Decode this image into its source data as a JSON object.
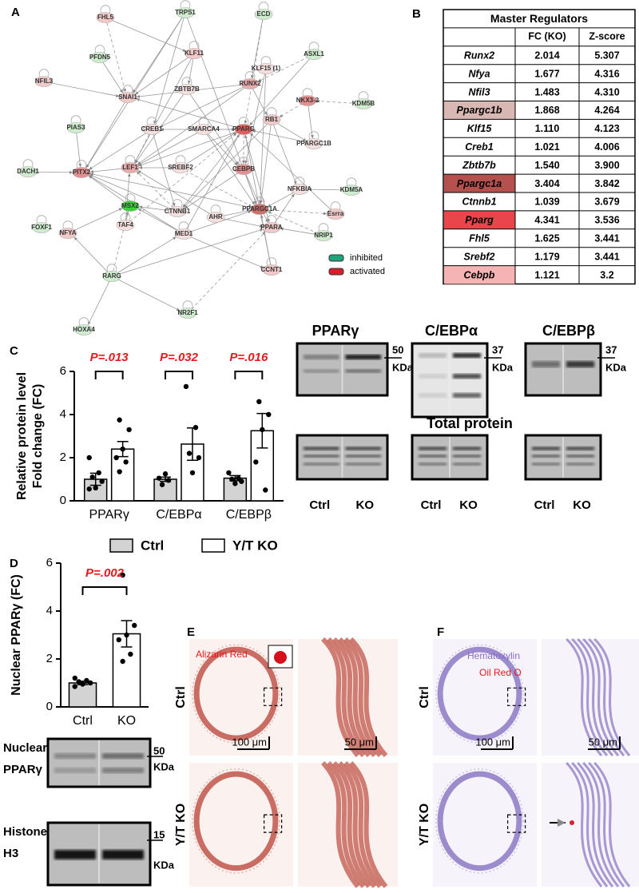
{
  "panels": {
    "a": "A",
    "b": "B",
    "c": "C",
    "d": "D",
    "e": "E",
    "f": "F"
  },
  "network": {
    "nodes": [
      {
        "label": "FHL5",
        "color": "#f2c9c9"
      },
      {
        "label": "TRPS1",
        "color": "#cfeccf"
      },
      {
        "label": "ECD",
        "color": "#cfeccf"
      },
      {
        "label": "PFDN5",
        "color": "#cfeccf"
      },
      {
        "label": "KLF11",
        "color": "#f2c9c9"
      },
      {
        "label": "KLF15 (1)",
        "color": "#f5dede"
      },
      {
        "label": "ASXL1",
        "color": "#cfeccf"
      },
      {
        "label": "NFIL3",
        "color": "#f2c9c9"
      },
      {
        "label": "SNAI1",
        "color": "#f2c9c9"
      },
      {
        "label": "ZBTB7B",
        "color": "#f5dede"
      },
      {
        "label": "RUNX2",
        "color": "#eaaaaa"
      },
      {
        "label": "NKX3-2",
        "color": "#e59090"
      },
      {
        "label": "KDM5B",
        "color": "#cfeccf"
      },
      {
        "label": "PIAS3",
        "color": "#cfeccf"
      },
      {
        "label": "CREB1",
        "color": "#f5dede"
      },
      {
        "label": "SMARCA4",
        "color": "#f5dede"
      },
      {
        "label": "PPARG",
        "color": "#e06060"
      },
      {
        "label": "RB1",
        "color": "#f2c9c9"
      },
      {
        "label": "PPARGC1B",
        "color": "#f5dede"
      },
      {
        "label": "DACH1",
        "color": "#cfeccf"
      },
      {
        "label": "PITX2",
        "color": "#e59090"
      },
      {
        "label": "LEF1",
        "color": "#eaaaaa"
      },
      {
        "label": "SREBF2",
        "color": "#f5dede"
      },
      {
        "label": "CEBPB",
        "color": "#e59090"
      },
      {
        "label": "NFKBIA",
        "color": "#f5dede"
      },
      {
        "label": "KDM5A",
        "color": "#cfeccf"
      },
      {
        "label": "FOXF1",
        "color": "#cfeccf"
      },
      {
        "label": "MSX2",
        "color": "#3ecf3e"
      },
      {
        "label": "CTNNB1",
        "color": "#f5dede"
      },
      {
        "label": "AHR",
        "color": "#f5dede"
      },
      {
        "label": "PPARGC1A",
        "color": "#d46a6a"
      },
      {
        "label": "Esrra",
        "color": "#f2c9c9"
      },
      {
        "label": "NFYA",
        "color": "#f2c9c9"
      },
      {
        "label": "TAF4",
        "color": "#f5dede"
      },
      {
        "label": "MED1",
        "color": "#f5dede"
      },
      {
        "label": "PPARA",
        "color": "#f2c9c9"
      },
      {
        "label": "NRIP1",
        "color": "#cfeccf"
      },
      {
        "label": "RARG",
        "color": "#cfeccf"
      },
      {
        "label": "CCNT1",
        "color": "#f2c9c9"
      },
      {
        "label": "NR2F1",
        "color": "#cfeccf"
      },
      {
        "label": "HOXA4",
        "color": "#cfeccf"
      }
    ],
    "legend": [
      {
        "label": "inhibited",
        "color": "#1fa37a"
      },
      {
        "label": "activated",
        "color": "#d0202a"
      }
    ]
  },
  "table": {
    "title": "Master Regulators",
    "header": [
      "FC (KO)",
      "Z-score"
    ],
    "rows": [
      {
        "cells": [
          "Runx2",
          "2.014",
          "5.307"
        ]
      },
      {
        "cells": [
          "Nfya",
          "1.677",
          "4.316"
        ]
      },
      {
        "cells": [
          "Nfil3",
          "1.483",
          "4.310"
        ]
      },
      {
        "cells": [
          "Ppargc1b",
          "1.868",
          "4.264"
        ],
        "color": "#d9b7b3"
      },
      {
        "cells": [
          "Klf15",
          "1.110",
          "4.123"
        ]
      },
      {
        "cells": [
          "Creb1",
          "1.021",
          "4.006"
        ]
      },
      {
        "cells": [
          "Zbtb7b",
          "1.540",
          "3.900"
        ]
      },
      {
        "cells": [
          "Ppargc1a",
          "3.404",
          "3.842"
        ],
        "color": "#b4504e"
      },
      {
        "cells": [
          "Ctnnb1",
          "1.039",
          "3.679"
        ]
      },
      {
        "cells": [
          "Pparg",
          "4.341",
          "3.536"
        ],
        "color": "#e8464a"
      },
      {
        "cells": [
          "Fhl5",
          "1.625",
          "3.441"
        ]
      },
      {
        "cells": [
          "Srebf2",
          "1.179",
          "3.441"
        ]
      },
      {
        "cells": [
          "Cebpb",
          "1.121",
          "3.2"
        ],
        "color": "#f5b3b3"
      }
    ]
  },
  "chart_data": [
    {
      "type": "bar",
      "y_label": [
        "Relative protein level",
        "Fold change (FC)"
      ],
      "categories": [
        "PPARγ",
        "C/EBPα",
        "C/EBPβ"
      ],
      "annotations": [
        "P=.013",
        "P=.032",
        "P=.016"
      ],
      "annotation_color": "#e41a1c",
      "series": [
        {
          "name": "Ctrl",
          "color": "#d3d3d3",
          "values": [
            1.0,
            1.0,
            1.05
          ],
          "errors": [
            0.28,
            0.1,
            0.12
          ],
          "points": [
            [
              0.55,
              0.6,
              0.9,
              1.1,
              1.3,
              2.0
            ],
            [
              0.75,
              0.95,
              1.05,
              1.25
            ],
            [
              0.8,
              0.9,
              1.0,
              1.05,
              1.3
            ]
          ]
        },
        {
          "name": "Y/T KO",
          "color": "#ffffff",
          "values": [
            2.4,
            2.63,
            3.25
          ],
          "errors": [
            0.35,
            0.75,
            0.8
          ],
          "points": [
            [
              1.35,
              1.8,
              2.0,
              2.4,
              3.3,
              3.75
            ],
            [
              1.3,
              2.0,
              2.2,
              3.4,
              5.3
            ],
            [
              0.5,
              1.8,
              3.3,
              4.0,
              4.6
            ]
          ]
        }
      ],
      "ylim": [
        0,
        6
      ],
      "yticks": [
        0,
        2,
        4,
        6
      ]
    },
    {
      "type": "bar",
      "y_label": [
        "Nuclear PPARγ (FC)"
      ],
      "categories": [
        "Ctrl",
        "KO"
      ],
      "annotations": [
        "P=.002"
      ],
      "annotation_color": "#e41a1c",
      "colors": [
        "#d3d3d3",
        "#ffffff"
      ],
      "values": [
        1.0,
        3.05
      ],
      "errors": [
        0.07,
        0.55
      ],
      "points": [
        [
          0.85,
          0.95,
          1.0,
          1.05,
          1.1,
          1.2
        ],
        [
          1.9,
          2.2,
          2.8,
          3.0,
          3.4,
          5.5
        ]
      ],
      "ylim": [
        0,
        6
      ],
      "yticks": [
        0,
        2,
        4,
        6
      ]
    }
  ],
  "blots_c": {
    "targets": [
      "PPARγ",
      "C/EBPα",
      "C/EBPβ"
    ],
    "markers": [
      [
        "50",
        "KDa"
      ],
      [
        "37",
        "KDa"
      ],
      [
        "37",
        "KDa"
      ]
    ],
    "total": "Total protein",
    "lanes": [
      "Ctrl",
      "KO"
    ]
  },
  "blots_d": {
    "rows": [
      {
        "label": [
          "Nuclear",
          "PPARγ"
        ],
        "marker": [
          "50",
          "KDa"
        ]
      },
      {
        "label": [
          "Histone",
          "H3"
        ],
        "marker": [
          "15",
          "KDa"
        ]
      }
    ]
  },
  "histology_e": {
    "stain": [
      "Alizarin Red"
    ],
    "rows": [
      "Ctrl",
      "Y/T KO"
    ],
    "scales": [
      "100 μm",
      "50 μm"
    ]
  },
  "histology_f": {
    "stain": [
      "Hematoxylin",
      "Oil Red O"
    ],
    "rows": [
      "Ctrl",
      "Y/T KO"
    ],
    "scales": [
      "100 μm",
      "50 μm"
    ]
  }
}
